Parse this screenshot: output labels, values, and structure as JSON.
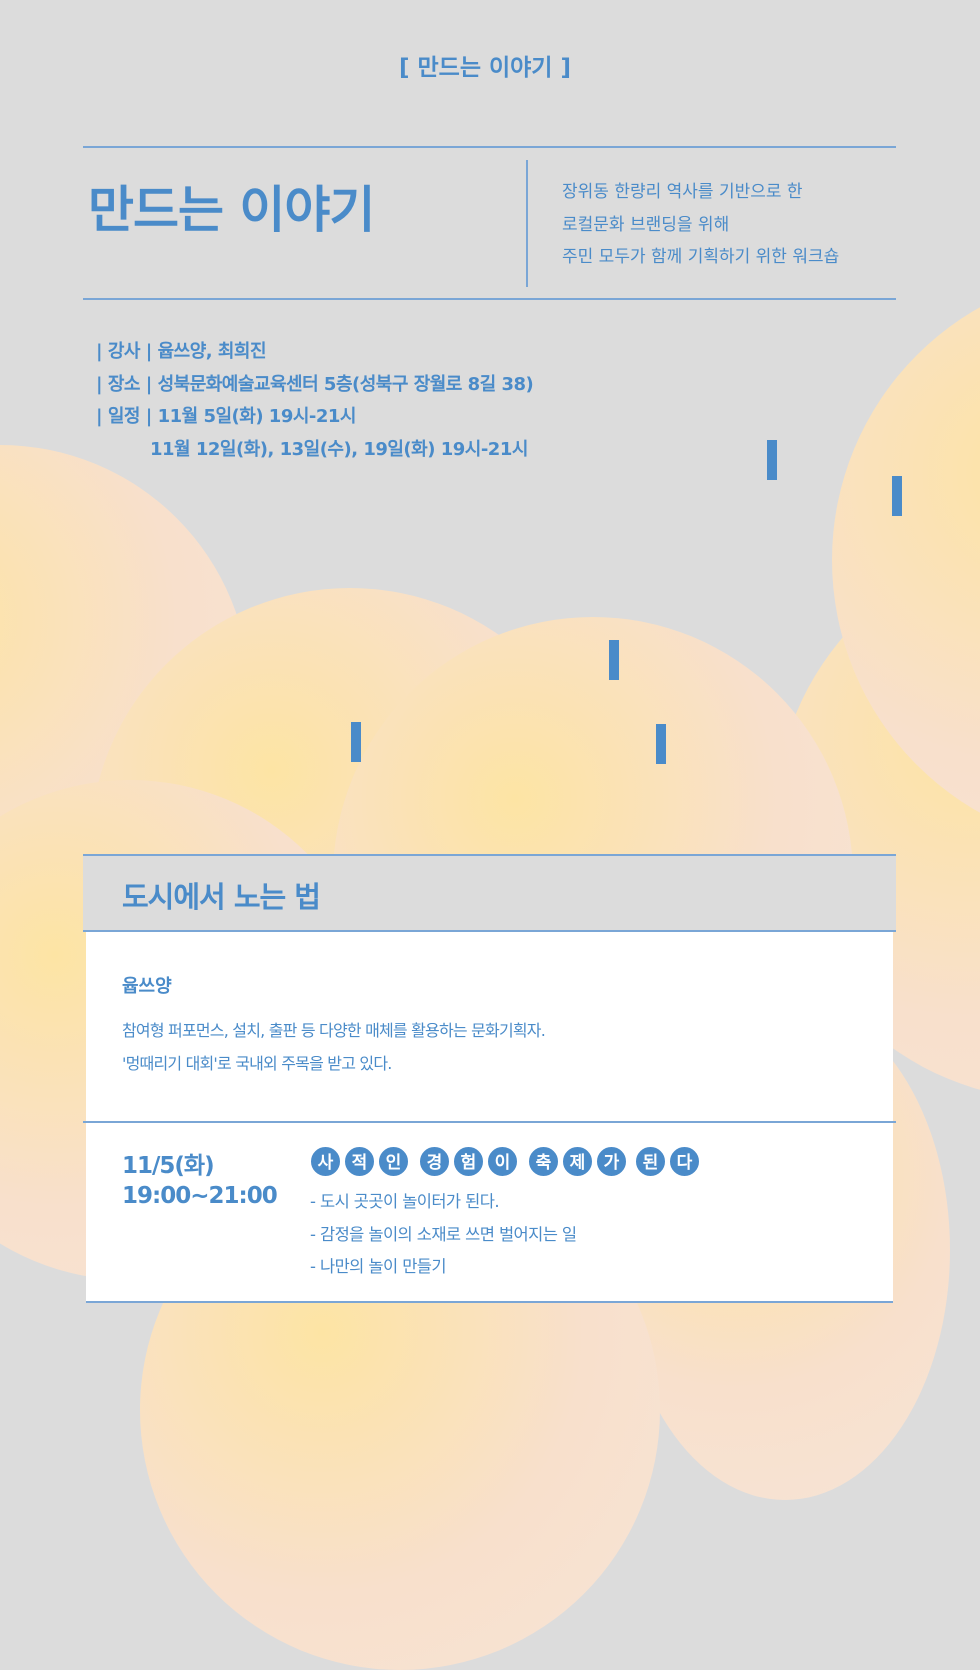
{
  "header_tag": "[ 만드는 이야기 ]",
  "title": "만드는 이야기",
  "subtitle_lines": [
    "장위동 한량리 역사를 기반으로 한",
    "로컬문화 브랜딩을 위해",
    "주민 모두가 함께 기획하기 위한 워크숍"
  ],
  "info": [
    "| 강사 | 윱쓰양, 최희진",
    "| 장소 | 성북문화예술교육센터 5층(성북구 장월로 8길 38)",
    "| 일정 | 11월 5일(화) 19시-21시",
    "11월 12일(화), 13일(수), 19일(화) 19시-21시"
  ],
  "section": {
    "title": "도시에서 노는 법",
    "speaker": "윱쓰양",
    "bio": [
      "참여형 퍼포먼스, 설치, 출판 등 다양한 매체를 활용하는 문화기획자.",
      "'멍때리기 대회'로 국내외 주목을 받고 있다."
    ],
    "date": "11/5(화)",
    "time": "19:00~21:00",
    "badges": [
      "사",
      "적",
      "인",
      "경",
      "험",
      "이",
      "축",
      "제",
      "가",
      "된",
      "다"
    ],
    "items": [
      "- 도시 곳곳이 놀이터가 된다.",
      "- 감정을 놀이의 소재로 쓰면 벌어지는 일",
      "- 나만의 놀이 만들기"
    ]
  },
  "colors": {
    "accent": "#4a8bc9",
    "background": "#dcdcdc"
  }
}
